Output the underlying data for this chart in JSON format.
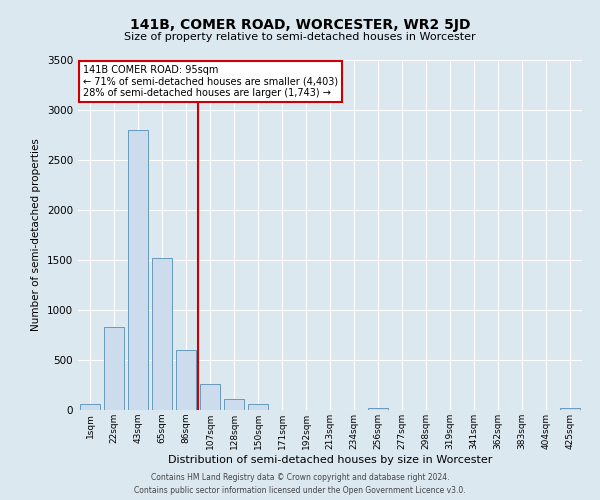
{
  "title": "141B, COMER ROAD, WORCESTER, WR2 5JD",
  "subtitle": "Size of property relative to semi-detached houses in Worcester",
  "xlabel": "Distribution of semi-detached houses by size in Worcester",
  "ylabel": "Number of semi-detached properties",
  "bar_labels": [
    "1sqm",
    "22sqm",
    "43sqm",
    "65sqm",
    "86sqm",
    "107sqm",
    "128sqm",
    "150sqm",
    "171sqm",
    "192sqm",
    "213sqm",
    "234sqm",
    "256sqm",
    "277sqm",
    "298sqm",
    "319sqm",
    "341sqm",
    "362sqm",
    "383sqm",
    "404sqm",
    "425sqm"
  ],
  "bar_values": [
    60,
    830,
    2800,
    1520,
    600,
    260,
    115,
    60,
    0,
    0,
    0,
    0,
    25,
    0,
    0,
    0,
    0,
    0,
    0,
    0,
    25
  ],
  "bar_color": "#ccdcec",
  "bar_edgecolor": "#6699bb",
  "vline_x": 4.5,
  "vline_color": "#cc0000",
  "ylim": [
    0,
    3500
  ],
  "yticks": [
    0,
    500,
    1000,
    1500,
    2000,
    2500,
    3000,
    3500
  ],
  "annotation_title": "141B COMER ROAD: 95sqm",
  "annotation_line1": "← 71% of semi-detached houses are smaller (4,403)",
  "annotation_line2": "28% of semi-detached houses are larger (1,743) →",
  "annotation_box_color": "#ffffff",
  "annotation_box_edgecolor": "#cc0000",
  "footer_line1": "Contains HM Land Registry data © Crown copyright and database right 2024.",
  "footer_line2": "Contains public sector information licensed under the Open Government Licence v3.0.",
  "bg_color": "#dce8f0",
  "plot_bg_color": "#dce8f0"
}
